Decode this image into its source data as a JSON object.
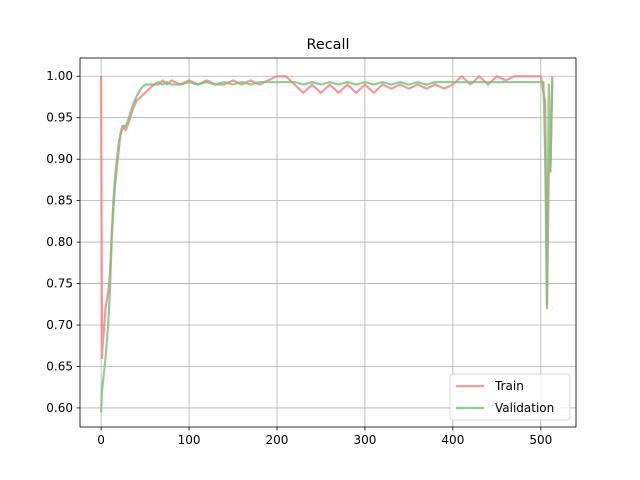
{
  "chart_data": {
    "type": "line",
    "title": "Recall",
    "xlabel": "",
    "ylabel": "",
    "xlim": [
      -24,
      540
    ],
    "ylim": [
      0.577,
      1.022
    ],
    "xticks": [
      0,
      100,
      200,
      300,
      400,
      500
    ],
    "yticks": [
      0.6,
      0.65,
      0.7,
      0.75,
      0.8,
      0.85,
      0.9,
      0.95,
      1.0
    ],
    "ytick_labels": [
      "0.60",
      "0.65",
      "0.70",
      "0.75",
      "0.80",
      "0.85",
      "0.90",
      "0.95",
      "1.00"
    ],
    "grid": true,
    "legend_position": "lower-right",
    "series": [
      {
        "name": "Train",
        "color": "#f28080",
        "x": [
          0,
          1,
          2,
          3,
          5,
          8,
          10,
          12,
          14,
          16,
          18,
          20,
          22,
          24,
          26,
          28,
          30,
          33,
          36,
          40,
          45,
          50,
          55,
          60,
          65,
          70,
          75,
          80,
          90,
          100,
          110,
          120,
          130,
          140,
          150,
          160,
          170,
          180,
          190,
          200,
          210,
          220,
          230,
          240,
          250,
          260,
          270,
          280,
          290,
          300,
          310,
          320,
          330,
          340,
          350,
          360,
          370,
          380,
          390,
          400,
          410,
          420,
          430,
          440,
          450,
          460,
          470,
          480,
          490,
          500,
          503,
          505,
          507,
          509,
          511,
          513
        ],
        "y": [
          1.0,
          0.66,
          0.68,
          0.69,
          0.72,
          0.74,
          0.76,
          0.81,
          0.85,
          0.88,
          0.9,
          0.92,
          0.93,
          0.94,
          0.94,
          0.935,
          0.94,
          0.95,
          0.96,
          0.97,
          0.975,
          0.98,
          0.985,
          0.99,
          0.99,
          0.995,
          0.99,
          0.995,
          0.99,
          0.995,
          0.99,
          0.995,
          0.99,
          0.99,
          0.995,
          0.99,
          0.995,
          0.99,
          0.995,
          1.0,
          1.0,
          0.99,
          0.98,
          0.99,
          0.98,
          0.99,
          0.98,
          0.99,
          0.98,
          0.99,
          0.98,
          0.99,
          0.985,
          0.99,
          0.985,
          0.99,
          0.985,
          0.99,
          0.985,
          0.99,
          1.0,
          0.99,
          1.0,
          0.99,
          1.0,
          0.995,
          1.0,
          1.0,
          1.0,
          1.0,
          0.98,
          0.97,
          0.72,
          0.88,
          0.9,
          1.0
        ]
      },
      {
        "name": "Validation",
        "color": "#78c178",
        "x": [
          0,
          1,
          2,
          3,
          5,
          8,
          10,
          12,
          14,
          16,
          18,
          20,
          22,
          24,
          26,
          28,
          30,
          33,
          36,
          40,
          45,
          50,
          55,
          60,
          65,
          70,
          75,
          80,
          90,
          100,
          110,
          120,
          130,
          140,
          150,
          160,
          170,
          180,
          190,
          200,
          210,
          220,
          230,
          240,
          250,
          260,
          270,
          280,
          290,
          300,
          310,
          320,
          330,
          340,
          350,
          360,
          370,
          380,
          390,
          400,
          410,
          420,
          430,
          440,
          450,
          460,
          470,
          480,
          490,
          500,
          503,
          505,
          507,
          509,
          511,
          513
        ],
        "y": [
          0.595,
          0.62,
          0.63,
          0.64,
          0.66,
          0.7,
          0.74,
          0.8,
          0.84,
          0.87,
          0.89,
          0.91,
          0.93,
          0.935,
          0.94,
          0.94,
          0.945,
          0.955,
          0.965,
          0.975,
          0.985,
          0.99,
          0.99,
          0.99,
          0.993,
          0.99,
          0.993,
          0.99,
          0.99,
          0.993,
          0.99,
          0.993,
          0.99,
          0.993,
          0.99,
          0.993,
          0.99,
          0.993,
          0.993,
          0.993,
          0.993,
          0.993,
          0.99,
          0.993,
          0.99,
          0.993,
          0.99,
          0.993,
          0.99,
          0.993,
          0.99,
          0.993,
          0.99,
          0.993,
          0.99,
          0.993,
          0.99,
          0.993,
          0.993,
          0.993,
          0.993,
          0.993,
          0.993,
          0.993,
          0.993,
          0.993,
          0.993,
          0.993,
          0.993,
          0.993,
          0.993,
          0.9,
          0.725,
          0.99,
          0.885,
          0.995
        ]
      }
    ]
  }
}
